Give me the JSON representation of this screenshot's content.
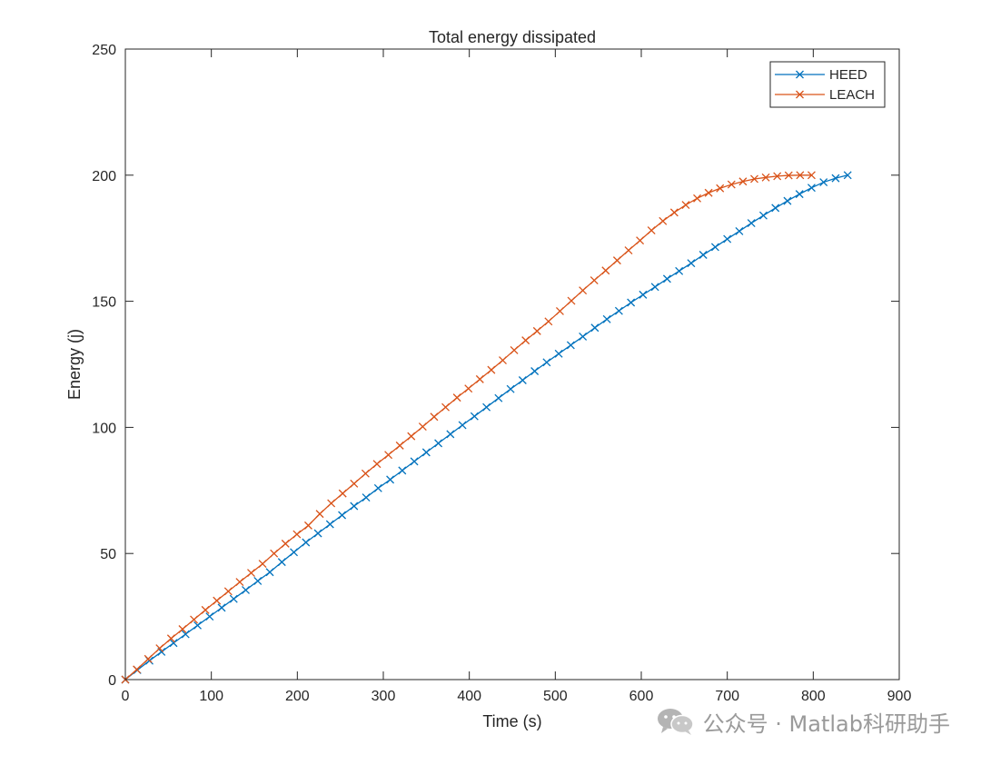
{
  "watermark": {
    "text": "公众号 · Matlab科研助手",
    "icon": "wechat-icon"
  },
  "chart_data": {
    "type": "line",
    "title": "Total energy dissipated",
    "xlabel": "Time (s)",
    "ylabel": "Energy (j)",
    "xlim": [
      0,
      900
    ],
    "ylim": [
      0,
      250
    ],
    "xticks": [
      0,
      100,
      200,
      300,
      400,
      500,
      600,
      700,
      800,
      900
    ],
    "yticks": [
      0,
      50,
      100,
      150,
      200,
      250
    ],
    "legend": {
      "location": "top-right",
      "entries": [
        "HEED",
        "LEACH"
      ]
    },
    "series": [
      {
        "name": "HEED",
        "color": "#0072BD",
        "marker": "x",
        "x": [
          0,
          14,
          28,
          42,
          56,
          70,
          84,
          98,
          112,
          126,
          140,
          154,
          168,
          182,
          196,
          210,
          224,
          238,
          252,
          266,
          280,
          294,
          308,
          322,
          336,
          350,
          364,
          378,
          392,
          406,
          420,
          434,
          448,
          462,
          476,
          490,
          504,
          518,
          532,
          546,
          560,
          574,
          588,
          602,
          616,
          630,
          644,
          658,
          672,
          686,
          700,
          714,
          728,
          742,
          756,
          770,
          784,
          798,
          812,
          826,
          840
        ],
        "y": [
          0,
          3.8,
          7.5,
          11,
          14.5,
          18,
          21.5,
          25,
          28.5,
          32,
          35.5,
          39.1,
          42.6,
          46.6,
          50.5,
          54.4,
          58,
          61.6,
          65.2,
          68.8,
          72.2,
          75.9,
          79.3,
          82.9,
          86.5,
          90.1,
          93.7,
          97.3,
          100.9,
          104.4,
          108,
          111.6,
          115.2,
          118.7,
          122.3,
          125.8,
          129.2,
          132.6,
          136,
          139.5,
          142.9,
          146.2,
          149.5,
          152.6,
          155.7,
          158.9,
          162,
          165.1,
          168.4,
          171.5,
          174.7,
          177.8,
          181,
          184,
          187,
          189.8,
          192.5,
          195,
          197.2,
          198.8,
          200
        ]
      },
      {
        "name": "LEACH",
        "color": "#D95319",
        "marker": "x",
        "x": [
          0,
          13.3,
          26.6,
          39.9,
          53.2,
          66.5,
          79.8,
          93.1,
          106.4,
          119.7,
          133,
          146.3,
          159.6,
          172.9,
          186.2,
          199.5,
          212.8,
          226.1,
          239.4,
          252.7,
          266,
          279.3,
          292.6,
          305.9,
          319.2,
          332.5,
          345.8,
          359.1,
          372.4,
          385.7,
          399,
          412.3,
          425.6,
          438.9,
          452.2,
          465.5,
          478.8,
          492.1,
          505.4,
          518.7,
          532,
          545.3,
          558.6,
          571.9,
          585.2,
          598.5,
          611.8,
          625.1,
          638.4,
          651.7,
          665,
          678.3,
          691.6,
          704.9,
          718.2,
          731.5,
          744.8,
          758.1,
          771.4,
          784.7,
          798
        ],
        "y": [
          0,
          4,
          8.2,
          12.4,
          16.3,
          20,
          23.8,
          27.6,
          31.3,
          35,
          38.7,
          42.3,
          45.9,
          50,
          53.9,
          57.6,
          61.1,
          65.7,
          69.9,
          73.8,
          77.7,
          81.7,
          85.5,
          89.1,
          92.8,
          96.5,
          100.3,
          104.2,
          108,
          111.8,
          115.4,
          119.1,
          122.8,
          126.6,
          130.6,
          134.5,
          138.2,
          142,
          146.1,
          150.2,
          154.3,
          158.3,
          162.2,
          166.2,
          170.2,
          174.1,
          178.1,
          181.8,
          185.2,
          188.2,
          190.8,
          193,
          194.8,
          196.3,
          197.5,
          198.5,
          199.1,
          199.6,
          199.9,
          200,
          200
        ]
      }
    ]
  }
}
